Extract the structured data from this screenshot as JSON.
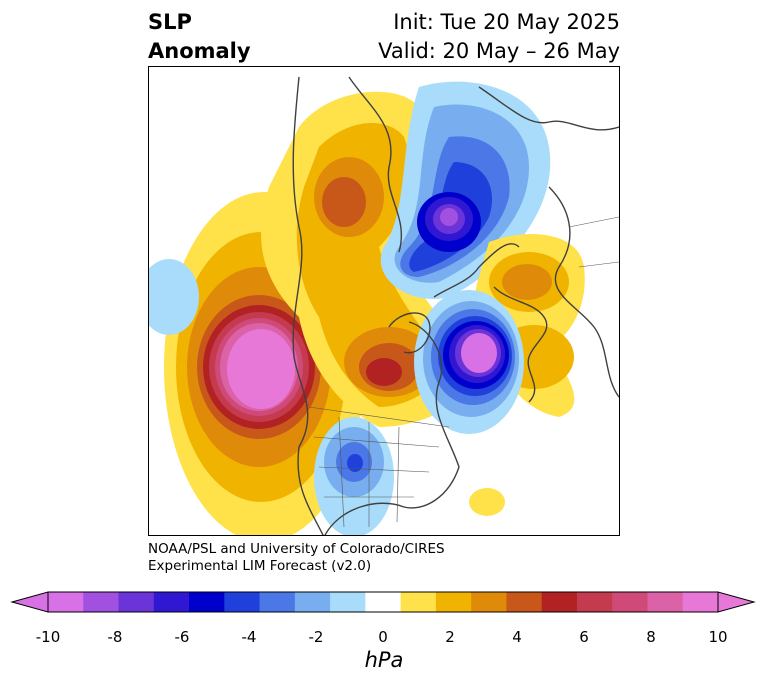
{
  "title": {
    "left_line1": "SLP",
    "left_line2": "Anomaly",
    "right_line1": "Init: Tue 20 May 2025",
    "right_line2": "Valid: 20 May – 26 May"
  },
  "credit": {
    "line1": "NOAA/PSL and University of Colorado/CIRES",
    "line2": "Experimental LIM Forecast (v2.0)"
  },
  "colorbar": {
    "unit": "hPa",
    "ticks": [
      "-10",
      "-8",
      "-6",
      "-4",
      "-2",
      "0",
      "2",
      "4",
      "6",
      "8",
      "10"
    ],
    "levels": [
      -10,
      -9,
      -8,
      -7,
      -6,
      -5,
      -4,
      -3,
      -2,
      -1,
      1,
      2,
      3,
      4,
      5,
      6,
      7,
      8,
      9,
      10
    ],
    "colors": [
      "#d971e6",
      "#a150e0",
      "#6a34d9",
      "#3018d3",
      "#0000cc",
      "#2040dc",
      "#4b78e6",
      "#78aef0",
      "#a9dcfa",
      "#ffffff",
      "#ffe14a",
      "#f0b400",
      "#e08a0a",
      "#c8581a",
      "#b22222",
      "#c43a4e",
      "#cf4a78",
      "#dc62a8",
      "#e878d8"
    ],
    "extend_low_color": "#d971e6",
    "extend_high_color": "#e878d8"
  },
  "map": {
    "projection": "north-polar-stereographic",
    "features": {
      "negative_centers": [
        {
          "name": "Arctic / Greenland Sea low",
          "min_hPa": -10
        },
        {
          "name": "North Atlantic low",
          "min_hPa": -10
        },
        {
          "name": "Central US low",
          "min_hPa": -5
        }
      ],
      "positive_centers": [
        {
          "name": "Northeast Pacific high",
          "max_hPa": 10
        },
        {
          "name": "Central Canada / Hudson Bay high",
          "max_hPa": 7
        },
        {
          "name": "Siberia high",
          "max_hPa": 5
        },
        {
          "name": "Western Europe high",
          "max_hPa": 4
        }
      ]
    }
  }
}
